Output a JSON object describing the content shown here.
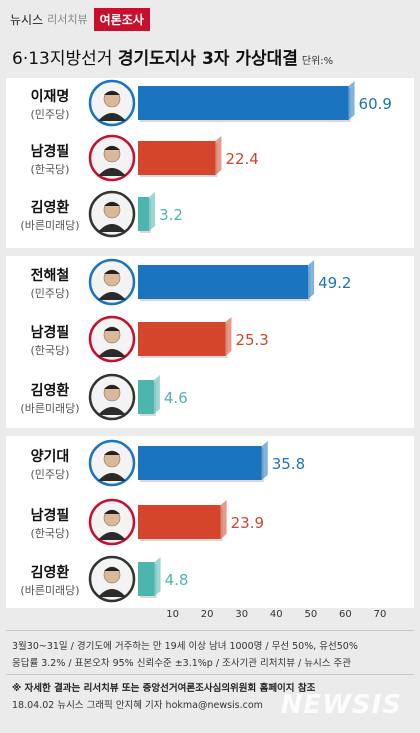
{
  "header": {
    "brand": "뉴시스",
    "brand_sub": "리서치뷰",
    "tag": "여론조사"
  },
  "title": {
    "prefix": "6·13지방선거 ",
    "main": "경기도지사 3자 가상대결",
    "unit": "단위:%"
  },
  "chart_data": {
    "type": "bar",
    "orientation": "horizontal",
    "xlim": [
      0,
      70
    ],
    "xticks": [
      10,
      20,
      30,
      40,
      50,
      60,
      70
    ],
    "groups": [
      {
        "candidates": [
          {
            "name": "이재명",
            "party": "(민주당)",
            "value": 60.9,
            "color": "#1a74c0"
          },
          {
            "name": "남경필",
            "party": "(한국당)",
            "value": 22.4,
            "color": "#d4452c"
          },
          {
            "name": "김영환",
            "party": "(바른미래당)",
            "value": 3.2,
            "color": "#4cb6ae"
          }
        ]
      },
      {
        "candidates": [
          {
            "name": "전해철",
            "party": "(민주당)",
            "value": 49.2,
            "color": "#1a74c0"
          },
          {
            "name": "남경필",
            "party": "(한국당)",
            "value": 25.3,
            "color": "#d4452c"
          },
          {
            "name": "김영환",
            "party": "(바른미래당)",
            "value": 4.6,
            "color": "#4cb6ae"
          }
        ]
      },
      {
        "candidates": [
          {
            "name": "양기대",
            "party": "(민주당)",
            "value": 35.8,
            "color": "#1a74c0"
          },
          {
            "name": "남경필",
            "party": "(한국당)",
            "value": 23.9,
            "color": "#d4452c"
          },
          {
            "name": "김영환",
            "party": "(바른미래당)",
            "value": 4.8,
            "color": "#4cb6ae"
          }
        ]
      }
    ]
  },
  "notes": {
    "line1": "3월30~31일 / 경기도에 거주하는 만 19세 이상 남녀 1000명 / 무선 50%, 유선50%",
    "line2": "응답률 3.2% / 표본오차 95% 신뢰수준 ±3.1%p / 조사기관 리처치뷰 / 뉴시스 주관"
  },
  "footer": {
    "line1": "※ 자세한 결과는 리서치뷰 또는 중앙선거여론조사심의위원회 홈페이지 참조",
    "line2": "18.04.02 뉴시스 그래픽 안지혜 기자 hokma@newsis.com",
    "watermark": "NEWSIS"
  }
}
